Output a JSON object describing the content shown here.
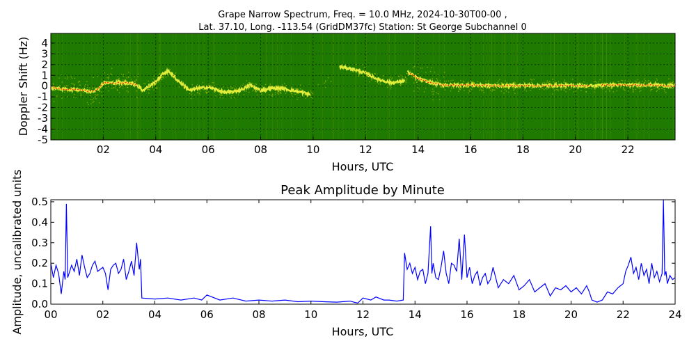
{
  "figure": {
    "title_line1": "Grape Narrow Spectrum, Freq. = 10.0 MHz, 2024-10-30T00-00 ,",
    "title_line2": "Lat.  37.10, Long. -113.54 (GridDM37fc) Station: St George Subchannel 0"
  },
  "colors": {
    "spectrum_background": "#1e7a00",
    "spectrum_noise": "#c9d400",
    "spectrum_trace": "#ffff44",
    "spectrum_peak": "#ff2000",
    "line": "#0000ff",
    "grid": "#000000"
  },
  "chart_data": [
    {
      "type": "heatmap",
      "title": "",
      "xlabel": "Hours, UTC",
      "ylabel": "Doppler Shift (Hz)",
      "xlim": [
        0,
        23.8
      ],
      "ylim": [
        -5,
        4.9
      ],
      "grid": true,
      "x_ticks": [
        2,
        4,
        6,
        8,
        10,
        12,
        14,
        16,
        18,
        20,
        22
      ],
      "x_tick_labels": [
        "02",
        "04",
        "06",
        "08",
        "10",
        "12",
        "14",
        "16",
        "18",
        "20",
        "22"
      ],
      "y_ticks": [
        4,
        3,
        2,
        1,
        0,
        -1,
        -2,
        -3,
        -4,
        -5
      ],
      "y_tick_labels": [
        "4",
        "3",
        "2",
        "1",
        "0",
        "-1",
        "-2",
        "-3",
        "-4",
        "-5"
      ],
      "doppler_trace_hz": {
        "hours": [
          0.0,
          0.5,
          1.0,
          1.5,
          1.8,
          2.0,
          2.5,
          3.0,
          3.3,
          3.5,
          4.0,
          4.3,
          4.5,
          4.8,
          5.0,
          5.3,
          5.6,
          6.0,
          6.3,
          6.6,
          7.0,
          7.3,
          7.6,
          8.0,
          8.4,
          8.8,
          9.2,
          9.6,
          9.9,
          11.0,
          11.5,
          12.0,
          12.5,
          13.0,
          13.5,
          13.6,
          14.0,
          14.5,
          15.0,
          16.0,
          17.0,
          18.0,
          19.0,
          20.0,
          20.6,
          21.0,
          22.0,
          23.0,
          23.8
        ],
        "values": [
          -0.1,
          -0.3,
          -0.3,
          -0.5,
          -0.3,
          0.3,
          0.3,
          0.3,
          0.1,
          -0.4,
          0.4,
          1.2,
          1.4,
          0.6,
          0.2,
          -0.4,
          -0.2,
          -0.1,
          -0.3,
          -0.6,
          -0.5,
          -0.3,
          0.1,
          -0.4,
          -0.2,
          -0.2,
          -0.4,
          -0.6,
          -0.8,
          1.8,
          1.6,
          1.2,
          0.6,
          0.3,
          0.5,
          1.3,
          0.7,
          0.3,
          0.1,
          0.1,
          0.05,
          0.05,
          0.05,
          0.05,
          0.0,
          0.1,
          0.1,
          0.1,
          0.0
        ]
      }
    },
    {
      "type": "line",
      "title": "Peak Amplitude by Minute",
      "xlabel": "Hours, UTC",
      "ylabel": "Amplitude, uncalibrated units",
      "xlim": [
        0,
        24
      ],
      "ylim": [
        0,
        0.51
      ],
      "grid": false,
      "x_ticks": [
        0,
        2,
        4,
        6,
        8,
        10,
        12,
        14,
        16,
        18,
        20,
        22,
        24
      ],
      "x_tick_labels": [
        "00",
        "02",
        "04",
        "06",
        "08",
        "10",
        "12",
        "14",
        "16",
        "18",
        "20",
        "22",
        "24"
      ],
      "y_ticks": [
        0.0,
        0.1,
        0.2,
        0.3,
        0.4,
        0.5
      ],
      "y_tick_labels": [
        "0.0",
        "0.1",
        "0.2",
        "0.3",
        "0.4",
        "0.5"
      ],
      "series": [
        {
          "x": [
            0.0,
            0.1,
            0.2,
            0.3,
            0.4,
            0.5,
            0.55,
            0.6,
            0.65,
            0.7,
            0.8,
            0.9,
            1.0,
            1.1,
            1.2,
            1.3,
            1.4,
            1.5,
            1.6,
            1.7,
            1.8,
            1.9,
            2.0,
            2.1,
            2.2,
            2.3,
            2.4,
            2.5,
            2.6,
            2.7,
            2.8,
            2.9,
            3.0,
            3.1,
            3.2,
            3.3,
            3.4,
            3.45,
            3.5,
            4.0,
            4.5,
            5.0,
            5.5,
            5.8,
            6.0,
            6.5,
            7.0,
            7.5,
            8.0,
            8.5,
            9.0,
            9.5,
            10.0,
            10.5,
            11.0,
            11.5,
            11.8,
            12.0,
            12.3,
            12.5,
            12.8,
            13.0,
            13.3,
            13.55,
            13.6,
            13.7,
            13.8,
            13.9,
            14.0,
            14.1,
            14.2,
            14.3,
            14.4,
            14.5,
            14.6,
            14.65,
            14.7,
            14.8,
            14.9,
            15.0,
            15.1,
            15.2,
            15.3,
            15.4,
            15.5,
            15.6,
            15.7,
            15.8,
            15.9,
            16.0,
            16.1,
            16.2,
            16.3,
            16.4,
            16.5,
            16.6,
            16.7,
            16.8,
            16.9,
            17.0,
            17.2,
            17.4,
            17.6,
            17.8,
            18.0,
            18.2,
            18.4,
            18.6,
            18.8,
            19.0,
            19.2,
            19.4,
            19.6,
            19.8,
            20.0,
            20.2,
            20.4,
            20.6,
            20.7,
            20.8,
            21.0,
            21.2,
            21.4,
            21.6,
            21.8,
            22.0,
            22.1,
            22.2,
            22.3,
            22.4,
            22.5,
            22.6,
            22.7,
            22.8,
            22.9,
            23.0,
            23.1,
            23.2,
            23.3,
            23.4,
            23.5,
            23.55,
            23.6,
            23.65,
            23.7,
            23.8,
            23.9,
            24.0
          ],
          "values": [
            0.2,
            0.13,
            0.19,
            0.15,
            0.05,
            0.16,
            0.12,
            0.49,
            0.13,
            0.15,
            0.19,
            0.16,
            0.22,
            0.14,
            0.24,
            0.18,
            0.13,
            0.15,
            0.19,
            0.21,
            0.16,
            0.17,
            0.18,
            0.15,
            0.07,
            0.17,
            0.19,
            0.2,
            0.15,
            0.17,
            0.22,
            0.12,
            0.16,
            0.21,
            0.14,
            0.3,
            0.17,
            0.22,
            0.03,
            0.025,
            0.03,
            0.02,
            0.03,
            0.02,
            0.045,
            0.02,
            0.03,
            0.015,
            0.02,
            0.015,
            0.02,
            0.012,
            0.015,
            0.012,
            0.01,
            0.015,
            0.005,
            0.03,
            0.02,
            0.035,
            0.02,
            0.02,
            0.015,
            0.02,
            0.25,
            0.17,
            0.2,
            0.15,
            0.18,
            0.12,
            0.16,
            0.17,
            0.1,
            0.15,
            0.38,
            0.15,
            0.2,
            0.13,
            0.12,
            0.18,
            0.26,
            0.15,
            0.1,
            0.2,
            0.19,
            0.16,
            0.32,
            0.12,
            0.34,
            0.13,
            0.18,
            0.1,
            0.14,
            0.16,
            0.09,
            0.13,
            0.15,
            0.1,
            0.12,
            0.18,
            0.08,
            0.12,
            0.1,
            0.14,
            0.07,
            0.09,
            0.12,
            0.06,
            0.08,
            0.1,
            0.04,
            0.08,
            0.07,
            0.09,
            0.06,
            0.08,
            0.05,
            0.09,
            0.06,
            0.02,
            0.01,
            0.02,
            0.06,
            0.05,
            0.08,
            0.1,
            0.16,
            0.19,
            0.23,
            0.15,
            0.18,
            0.12,
            0.2,
            0.14,
            0.17,
            0.1,
            0.2,
            0.13,
            0.16,
            0.11,
            0.15,
            0.51,
            0.14,
            0.16,
            0.1,
            0.14,
            0.12,
            0.13
          ]
        }
      ]
    }
  ]
}
